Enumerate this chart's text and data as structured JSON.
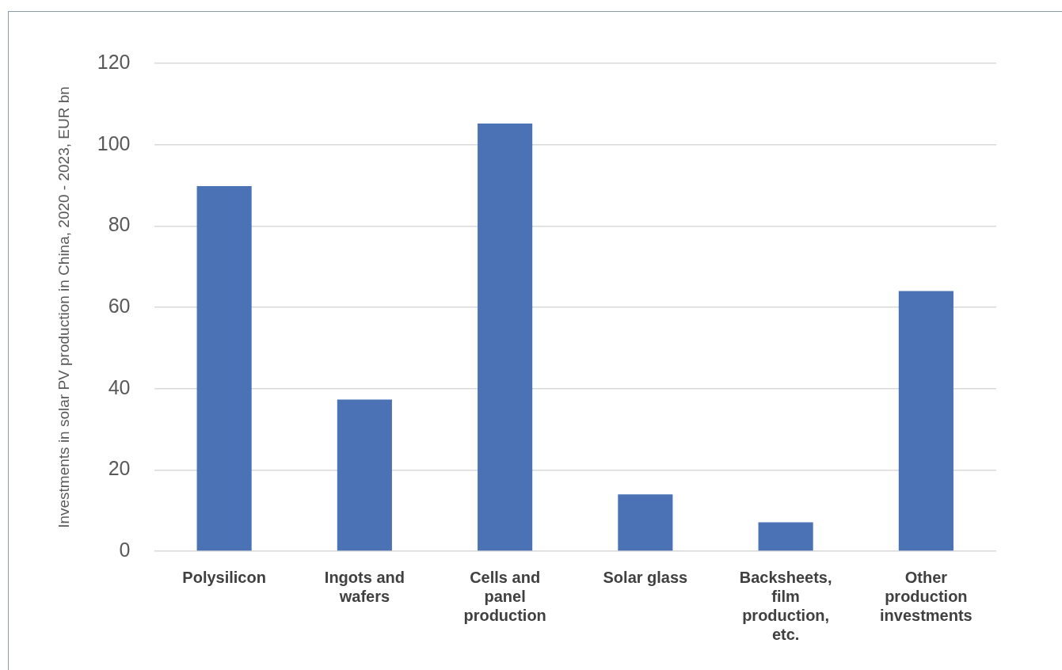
{
  "chart_data": {
    "type": "bar",
    "ylabel": "Investments in solar PV production in China, 2020 - 2023, EUR bn",
    "categories": [
      "Polysilicon",
      "Ingots and wafers",
      "Cells and panel production",
      "Solar glass",
      "Backsheets, film production, etc.",
      "Other production investments"
    ],
    "values": [
      89.8,
      37.3,
      105.2,
      14.0,
      7.1,
      64.0
    ],
    "color": "#4a72b5",
    "ylim": [
      0,
      120
    ],
    "yticks": [
      0,
      20,
      40,
      60,
      80,
      100,
      120
    ],
    "grid": "y",
    "legend": false
  }
}
